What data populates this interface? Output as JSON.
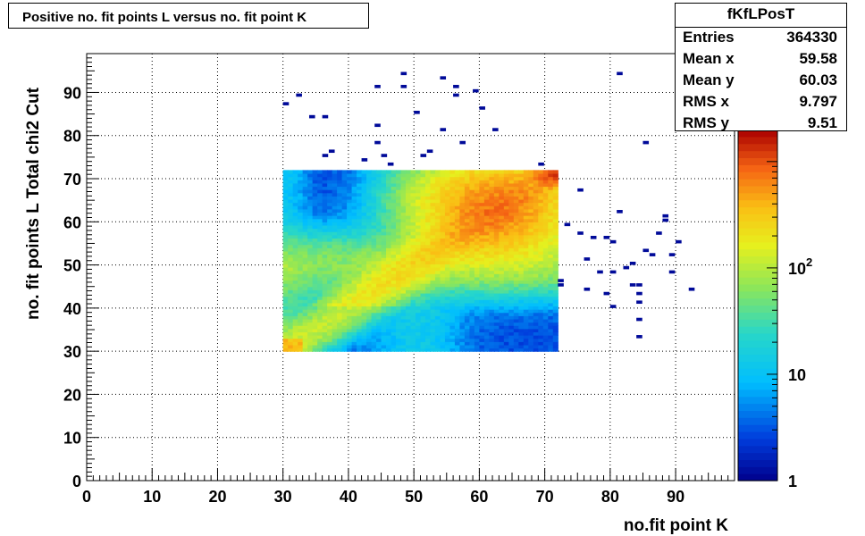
{
  "title": "Positive no. fit points L versus no. fit point K",
  "stats": {
    "name": "fKfLPosT",
    "rows": [
      {
        "label": "Entries",
        "value": "364330"
      },
      {
        "label": "Mean x",
        "value": "59.58"
      },
      {
        "label": "Mean y",
        "value": "60.03"
      },
      {
        "label": "RMS x",
        "value": "9.797"
      },
      {
        "label": "RMS y",
        "value": "9.51"
      }
    ]
  },
  "chart_data": {
    "type": "heatmap",
    "title": "Positive no. fit points L versus no. fit point K",
    "xlabel": "no.fit point K",
    "ylabel": "no. fit points  L   Total chi2 Cut",
    "xlim": [
      0,
      99
    ],
    "ylim": [
      0,
      99
    ],
    "x_ticks": [
      0,
      10,
      20,
      30,
      40,
      50,
      60,
      70,
      80,
      90
    ],
    "y_ticks": [
      0,
      10,
      20,
      30,
      40,
      50,
      60,
      70,
      80,
      90
    ],
    "grid": true,
    "z_scale": "log",
    "z_ticks": [
      {
        "value": 1,
        "label": "1"
      },
      {
        "value": 10,
        "label": "10"
      },
      {
        "value": 100,
        "label": "10^2"
      }
    ],
    "zlim": [
      1,
      2000
    ],
    "dense_region": {
      "x": [
        30,
        72
      ],
      "y": [
        30,
        72
      ]
    },
    "peak": {
      "x": 62,
      "y": 63
    },
    "corner_peak": {
      "x": 71,
      "y": 71
    },
    "sparse_points": [
      [
        30,
        87
      ],
      [
        32,
        89
      ],
      [
        34,
        84
      ],
      [
        36,
        84
      ],
      [
        36,
        75
      ],
      [
        37,
        76
      ],
      [
        42,
        74
      ],
      [
        44,
        78
      ],
      [
        44,
        82
      ],
      [
        44,
        91
      ],
      [
        45,
        75
      ],
      [
        46,
        73
      ],
      [
        48,
        94
      ],
      [
        48,
        91
      ],
      [
        50,
        85
      ],
      [
        51,
        75
      ],
      [
        52,
        76
      ],
      [
        54,
        93
      ],
      [
        54,
        81
      ],
      [
        56,
        91
      ],
      [
        56,
        89
      ],
      [
        57,
        78
      ],
      [
        59,
        90
      ],
      [
        60,
        86
      ],
      [
        62,
        81
      ],
      [
        69,
        73
      ],
      [
        75,
        67
      ],
      [
        73,
        59
      ],
      [
        75,
        57
      ],
      [
        77,
        56
      ],
      [
        79,
        56
      ],
      [
        80,
        55
      ],
      [
        76,
        51
      ],
      [
        78,
        48
      ],
      [
        80,
        48
      ],
      [
        82,
        49
      ],
      [
        83,
        50
      ],
      [
        72,
        46
      ],
      [
        72,
        45
      ],
      [
        76,
        44
      ],
      [
        79,
        43
      ],
      [
        80,
        40
      ],
      [
        83,
        45
      ],
      [
        84,
        45
      ],
      [
        84,
        43
      ],
      [
        84,
        41
      ],
      [
        84,
        37
      ],
      [
        84,
        33
      ],
      [
        81,
        62
      ],
      [
        85,
        53
      ],
      [
        86,
        52
      ],
      [
        87,
        57
      ],
      [
        88,
        61
      ],
      [
        88,
        60
      ],
      [
        89,
        52
      ],
      [
        90,
        55
      ],
      [
        89,
        48
      ],
      [
        92,
        44
      ],
      [
        81,
        94
      ],
      [
        85,
        78
      ]
    ]
  }
}
